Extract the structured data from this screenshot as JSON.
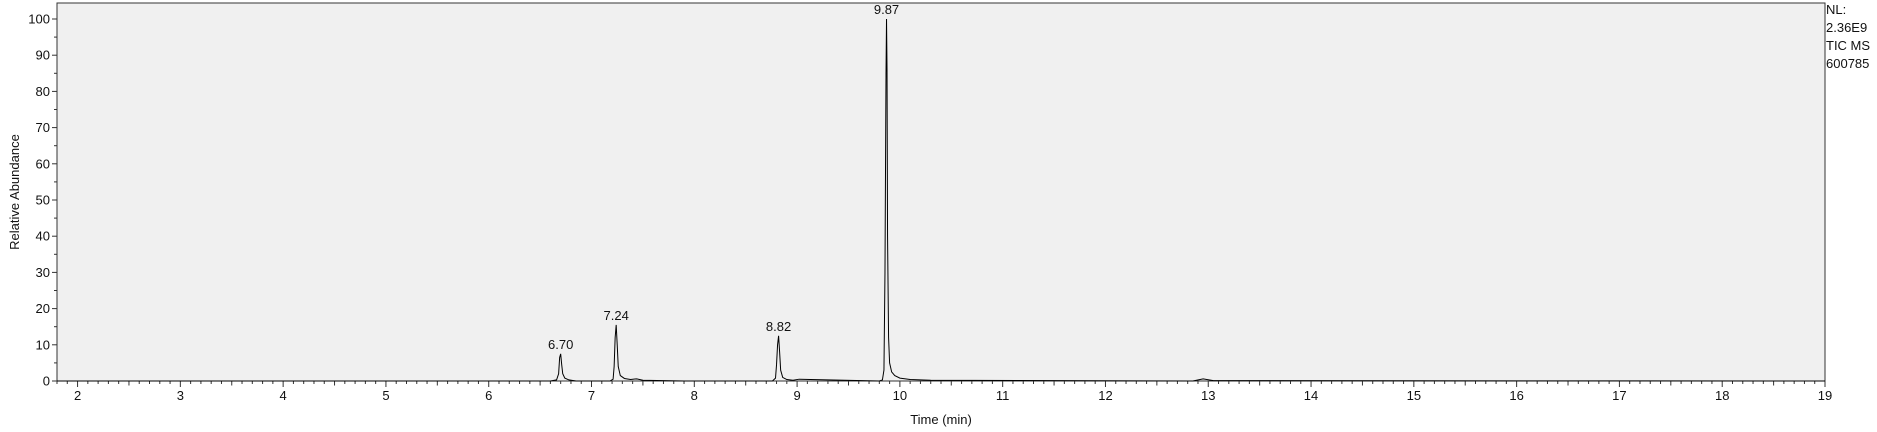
{
  "info": {
    "nl_label": "NL:",
    "nl_value": "2.36E9",
    "trace_label": "TIC  MS",
    "file_id": "600785"
  },
  "chart_data": {
    "type": "line",
    "title": "",
    "xlabel": "Time (min)",
    "ylabel": "Relative Abundance",
    "xlim": [
      1.8,
      19.0
    ],
    "ylim": [
      0,
      100
    ],
    "xticks": [
      2,
      3,
      4,
      5,
      6,
      7,
      8,
      9,
      10,
      11,
      12,
      13,
      14,
      15,
      16,
      17,
      18,
      19
    ],
    "yticks": [
      0,
      10,
      20,
      30,
      40,
      50,
      60,
      70,
      80,
      90,
      100
    ],
    "grid": false,
    "series": [
      {
        "x": [
          1.8,
          6.6,
          6.66,
          6.68,
          6.69,
          6.7,
          6.71,
          6.72,
          6.74,
          6.78,
          6.85,
          7.18,
          7.21,
          7.22,
          7.23,
          7.24,
          7.25,
          7.26,
          7.28,
          7.32,
          7.38,
          7.44,
          7.5,
          7.9,
          8.76,
          8.79,
          8.8,
          8.81,
          8.82,
          8.83,
          8.84,
          8.86,
          8.9,
          8.96,
          9.02,
          9.8,
          9.83,
          9.845,
          9.855,
          9.865,
          9.87,
          9.875,
          9.88,
          9.89,
          9.9,
          9.92,
          9.95,
          10.0,
          10.1,
          10.3,
          12.85,
          12.95,
          13.05,
          19.0
        ],
        "y": [
          0,
          0,
          0.3,
          2.0,
          6.5,
          7.5,
          4.5,
          2.0,
          0.8,
          0.3,
          0,
          0,
          0.5,
          4.0,
          12.0,
          15.5,
          10.0,
          4.0,
          1.5,
          0.7,
          0.4,
          0.6,
          0.2,
          0,
          0,
          0.8,
          4.5,
          10.0,
          12.5,
          8.0,
          3.0,
          1.0,
          0.4,
          0.2,
          0.5,
          0,
          0.3,
          3.0,
          30.0,
          85.0,
          100.0,
          86.0,
          40.0,
          12.0,
          5.0,
          2.5,
          1.5,
          0.8,
          0.4,
          0.2,
          0,
          0.6,
          0.1,
          0
        ]
      }
    ],
    "annotations": [
      {
        "label": "6.70",
        "x": 6.7,
        "y": 7.5
      },
      {
        "label": "7.24",
        "x": 7.24,
        "y": 15.5
      },
      {
        "label": "8.82",
        "x": 8.82,
        "y": 12.5
      },
      {
        "label": "9.87",
        "x": 9.87,
        "y": 100
      }
    ]
  }
}
